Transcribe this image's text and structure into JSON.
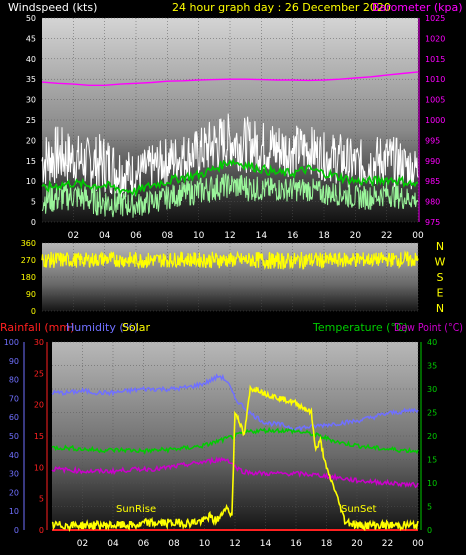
{
  "header": {
    "wind_label": "Windspeed (kts)",
    "title": "24 hour graph day : 26 December 2020",
    "baro_label": "Barometer (kpa)"
  },
  "colors": {
    "wind_label": "#ffffff",
    "title": "#ffff00",
    "baro": "#ff00ff",
    "gust": "#ffffff",
    "avg_wind": "#9af59a",
    "wind_trend": "#00cc00",
    "direction": "#ffff00",
    "rain": "#ff2020",
    "humidity": "#7070ff",
    "solar": "#ffff00",
    "temp": "#00cc00",
    "dewpoint": "#cc00cc",
    "axis_text": "#ffffff"
  },
  "x_ticks": [
    "02",
    "04",
    "06",
    "08",
    "10",
    "12",
    "14",
    "16",
    "18",
    "20",
    "22",
    "00"
  ],
  "chart_data": [
    {
      "type": "line",
      "name": "wind-barometer",
      "xlim": [
        0,
        24
      ],
      "y_left": {
        "label": "Windspeed (kts)",
        "lim": [
          0,
          50
        ],
        "ticks": [
          0,
          5,
          10,
          15,
          20,
          25,
          30,
          35,
          40,
          45,
          50
        ]
      },
      "y_right": {
        "label": "Barometer (kpa)",
        "lim": [
          975,
          1025
        ],
        "ticks": [
          975,
          980,
          985,
          990,
          995,
          1000,
          1005,
          1010,
          1015,
          1020,
          1025
        ]
      },
      "series": [
        {
          "key": "gust",
          "axis": "left",
          "x": [
            0,
            1,
            2,
            3,
            4,
            5,
            6,
            7,
            8,
            9,
            10,
            11,
            12,
            13,
            14,
            15,
            16,
            17,
            18,
            19,
            20,
            21,
            22,
            23,
            24
          ],
          "lo": [
            8,
            9,
            9,
            8,
            7,
            6,
            6,
            8,
            9,
            10,
            11,
            12,
            13,
            12,
            12,
            11,
            11,
            12,
            10,
            9,
            8,
            8,
            9,
            8,
            8
          ],
          "hi": [
            22,
            24,
            22,
            21,
            22,
            19,
            17,
            19,
            21,
            22,
            23,
            26,
            27,
            26,
            25,
            25,
            24,
            24,
            22,
            22,
            20,
            21,
            22,
            20,
            18
          ]
        },
        {
          "key": "avg_wind",
          "axis": "left",
          "x": [
            0,
            1,
            2,
            3,
            4,
            5,
            6,
            7,
            8,
            9,
            10,
            11,
            12,
            13,
            14,
            15,
            16,
            17,
            18,
            19,
            20,
            21,
            22,
            23,
            24
          ],
          "lo": [
            2,
            2,
            3,
            2,
            1,
            1,
            1,
            2,
            3,
            4,
            4,
            5,
            6,
            5,
            5,
            5,
            5,
            5,
            4,
            4,
            3,
            3,
            4,
            3,
            3
          ],
          "hi": [
            9,
            10,
            10,
            9,
            9,
            8,
            7,
            8,
            9,
            10,
            11,
            12,
            12,
            12,
            11,
            11,
            11,
            11,
            10,
            10,
            9,
            9,
            10,
            9,
            8
          ]
        },
        {
          "key": "wind_trend",
          "axis": "left",
          "x": [
            0,
            1,
            2,
            3,
            4,
            5,
            6,
            7,
            8,
            9,
            10,
            11,
            12,
            13,
            14,
            15,
            16,
            17,
            18,
            19,
            20,
            21,
            22,
            23,
            24
          ],
          "y": [
            8,
            9,
            9.5,
            9,
            9,
            8,
            7.5,
            9,
            10,
            11,
            11.5,
            13,
            15,
            14,
            13,
            12,
            12,
            13,
            12,
            11,
            10,
            10,
            10.5,
            10,
            9
          ]
        },
        {
          "key": "baro",
          "axis": "right",
          "x": [
            0,
            1,
            2,
            3,
            4,
            5,
            6,
            7,
            8,
            9,
            10,
            11,
            12,
            13,
            14,
            15,
            16,
            17,
            18,
            19,
            20,
            21,
            22,
            23,
            24
          ],
          "y": [
            1009.3,
            1009.0,
            1008.8,
            1008.5,
            1008.5,
            1008.8,
            1009.0,
            1009.2,
            1009.5,
            1009.6,
            1009.8,
            1009.9,
            1010.0,
            1010.0,
            1009.9,
            1009.8,
            1009.8,
            1009.7,
            1009.8,
            1010.0,
            1010.3,
            1010.6,
            1011.0,
            1011.4,
            1011.8
          ]
        }
      ]
    },
    {
      "type": "line",
      "name": "wind-direction",
      "xlim": [
        0,
        24
      ],
      "y_left": {
        "lim": [
          0,
          360
        ],
        "ticks": [
          0,
          90,
          180,
          270,
          360
        ]
      },
      "compass": [
        "N",
        "W",
        "S",
        "E",
        "N"
      ],
      "series": [
        {
          "key": "direction",
          "x": [
            0,
            1,
            2,
            3,
            4,
            5,
            6,
            7,
            8,
            9,
            10,
            11,
            12,
            13,
            14,
            15,
            16,
            17,
            18,
            19,
            20,
            21,
            22,
            23,
            24
          ],
          "lo": [
            230,
            225,
            230,
            230,
            235,
            230,
            225,
            230,
            230,
            235,
            230,
            225,
            230,
            230,
            225,
            220,
            220,
            225,
            225,
            230,
            230,
            235,
            235,
            230,
            230
          ],
          "hi": [
            310,
            315,
            310,
            310,
            315,
            310,
            315,
            310,
            310,
            315,
            310,
            315,
            310,
            310,
            315,
            310,
            310,
            315,
            310,
            310,
            315,
            310,
            310,
            315,
            310
          ]
        }
      ]
    },
    {
      "type": "line",
      "name": "rain-humidity-temp",
      "xlim": [
        0,
        24
      ],
      "labels": {
        "rain": "Rainfall (mm)",
        "humidity": "Humidity (%)",
        "solar": "Solar",
        "temp": "Temperature (°C)",
        "dewpoint": "Dew Point (°C)",
        "sunrise": "SunRise",
        "sunset": "SunSet"
      },
      "y_left_humidity": {
        "lim": [
          0,
          100
        ],
        "ticks": [
          0,
          10,
          20,
          30,
          40,
          50,
          60,
          70,
          80,
          90,
          100
        ]
      },
      "y_left_rain": {
        "lim": [
          0,
          30
        ],
        "ticks": [
          0,
          5,
          10,
          15,
          20,
          25,
          30
        ]
      },
      "y_right": {
        "lim": [
          0,
          40
        ],
        "ticks": [
          0,
          5,
          10,
          15,
          20,
          25,
          30,
          35,
          40
        ]
      },
      "sunrise_x": 5.8,
      "sunset_x": 19.2,
      "series": [
        {
          "key": "humidity",
          "axis": "humidity",
          "x": [
            0,
            1,
            2,
            3,
            4,
            5,
            6,
            7,
            8,
            9,
            10,
            10.5,
            11,
            11.5,
            12,
            12.5,
            13,
            14,
            15,
            16,
            17,
            18,
            19,
            20,
            21,
            22,
            23,
            24
          ],
          "y": [
            73,
            73,
            74,
            73,
            73,
            74,
            75,
            75,
            75,
            76,
            78,
            80,
            82,
            79,
            70,
            66,
            62,
            57,
            56,
            54,
            55,
            56,
            57,
            58,
            60,
            62,
            63,
            64
          ]
        },
        {
          "key": "temp",
          "axis": "right",
          "x": [
            0,
            1,
            2,
            3,
            4,
            5,
            6,
            7,
            8,
            9,
            10,
            11,
            12,
            13,
            14,
            15,
            16,
            17,
            18,
            19,
            20,
            21,
            22,
            23,
            24
          ],
          "y": [
            17.5,
            17.5,
            17.2,
            17.0,
            17.0,
            17.0,
            16.8,
            17.0,
            17.2,
            17.5,
            18,
            19,
            20,
            21,
            21.2,
            21.2,
            21,
            20.5,
            19.5,
            18.5,
            18,
            17.5,
            17.2,
            17,
            16.8
          ]
        },
        {
          "key": "dewpoint",
          "axis": "right",
          "x": [
            0,
            1,
            2,
            3,
            4,
            5,
            6,
            7,
            8,
            9,
            10,
            11,
            11.5,
            12,
            12.5,
            13,
            14,
            15,
            16,
            17,
            18,
            19,
            20,
            21,
            22,
            23,
            24
          ],
          "y": [
            13,
            12.8,
            12.5,
            12.5,
            12.5,
            12.8,
            13,
            13,
            13.5,
            14,
            14.5,
            15,
            15,
            13.5,
            12.5,
            12.2,
            12,
            12,
            12,
            11.8,
            11.5,
            11,
            10.5,
            10.3,
            10,
            9.8,
            9.5
          ]
        },
        {
          "key": "rain",
          "axis": "rain",
          "x": [
            0,
            24
          ],
          "y": [
            0,
            0
          ]
        },
        {
          "key": "solar",
          "axis": "right",
          "x": [
            0,
            1,
            2,
            3,
            4,
            5,
            5.8,
            6,
            7,
            8,
            9,
            10,
            10.3,
            10.6,
            11,
            11.4,
            11.8,
            12,
            12.2,
            12.6,
            13,
            13.5,
            14,
            15,
            16,
            16.5,
            17,
            17.3,
            17.6,
            18,
            18.5,
            19,
            19.2,
            20,
            21,
            22,
            23,
            24
          ],
          "y": [
            1,
            1,
            1,
            1,
            1,
            1,
            1,
            1.5,
            1.5,
            1.5,
            1.5,
            2,
            3,
            2,
            2.5,
            5,
            3,
            25,
            24,
            20,
            30,
            30,
            29,
            28,
            27,
            26,
            25,
            17,
            19,
            13,
            9,
            4,
            2,
            1,
            1,
            1,
            1,
            1
          ]
        }
      ]
    }
  ]
}
